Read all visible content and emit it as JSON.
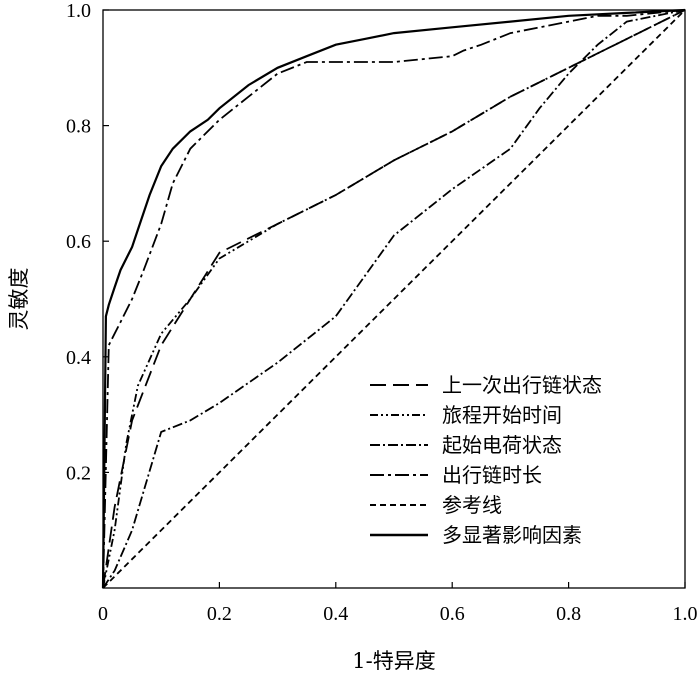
{
  "chart_data": {
    "type": "line",
    "title": "",
    "xlabel": "1-特异度",
    "ylabel": "灵敏度",
    "xlim": [
      0,
      1
    ],
    "ylim": [
      0,
      1
    ],
    "x_ticks": [
      "0",
      "0.2",
      "0.4",
      "0.6",
      "0.8",
      "1.0"
    ],
    "y_ticks": [
      "0.2",
      "0.4",
      "0.6",
      "0.8",
      "1.0"
    ],
    "grid": false,
    "legend_position": "bottom-right",
    "series": [
      {
        "name": "上一次出行链状态",
        "dash": "long-dash",
        "x": [
          0,
          0.02,
          0.05,
          0.1,
          0.15,
          0.2,
          0.3,
          0.4,
          0.5,
          0.6,
          0.7,
          0.8,
          0.9,
          1.0
        ],
        "y": [
          0,
          0.14,
          0.29,
          0.42,
          0.5,
          0.58,
          0.63,
          0.68,
          0.74,
          0.79,
          0.85,
          0.9,
          0.95,
          1.0
        ]
      },
      {
        "name": "旅程开始时间",
        "dash": "dash-dot-dot",
        "x": [
          0,
          0.02,
          0.04,
          0.06,
          0.1,
          0.15,
          0.2,
          0.3,
          0.4,
          0.5,
          0.6,
          0.7,
          0.8,
          0.9,
          1.0
        ],
        "y": [
          0,
          0.1,
          0.25,
          0.35,
          0.44,
          0.5,
          0.57,
          0.63,
          0.68,
          0.74,
          0.79,
          0.85,
          0.9,
          0.95,
          1.0
        ]
      },
      {
        "name": "起始电荷状态",
        "dash": "dash-dot",
        "x": [
          0,
          0.02,
          0.05,
          0.1,
          0.15,
          0.2,
          0.3,
          0.4,
          0.5,
          0.6,
          0.7,
          0.75,
          0.8,
          0.85,
          0.9,
          1.0
        ],
        "y": [
          0,
          0.03,
          0.1,
          0.27,
          0.29,
          0.32,
          0.39,
          0.47,
          0.61,
          0.69,
          0.76,
          0.83,
          0.89,
          0.94,
          0.98,
          1.0
        ]
      },
      {
        "name": "出行链时长",
        "dash": "long-dash-dot",
        "x": [
          0,
          0.01,
          0.02,
          0.03,
          0.05,
          0.07,
          0.1,
          0.12,
          0.15,
          0.2,
          0.25,
          0.3,
          0.35,
          0.4,
          0.5,
          0.6,
          0.62,
          0.65,
          0.7,
          0.8,
          0.85,
          0.9,
          1.0
        ],
        "y": [
          0,
          0.42,
          0.44,
          0.46,
          0.5,
          0.55,
          0.63,
          0.7,
          0.76,
          0.81,
          0.85,
          0.89,
          0.91,
          0.91,
          0.91,
          0.92,
          0.93,
          0.94,
          0.96,
          0.98,
          0.99,
          0.99,
          1.0
        ]
      },
      {
        "name": "参考线",
        "dash": "short-dash",
        "x": [
          0,
          1
        ],
        "y": [
          0,
          1
        ]
      },
      {
        "name": "多显著影响因素",
        "dash": "solid",
        "x": [
          0,
          0.005,
          0.01,
          0.02,
          0.03,
          0.04,
          0.05,
          0.06,
          0.08,
          0.1,
          0.12,
          0.15,
          0.18,
          0.2,
          0.25,
          0.3,
          0.35,
          0.4,
          0.45,
          0.5,
          0.6,
          0.7,
          0.8,
          0.9,
          1.0
        ],
        "y": [
          0,
          0.47,
          0.49,
          0.52,
          0.55,
          0.57,
          0.59,
          0.62,
          0.68,
          0.73,
          0.76,
          0.79,
          0.81,
          0.83,
          0.87,
          0.9,
          0.92,
          0.94,
          0.95,
          0.96,
          0.97,
          0.98,
          0.99,
          0.995,
          1.0
        ]
      }
    ]
  }
}
